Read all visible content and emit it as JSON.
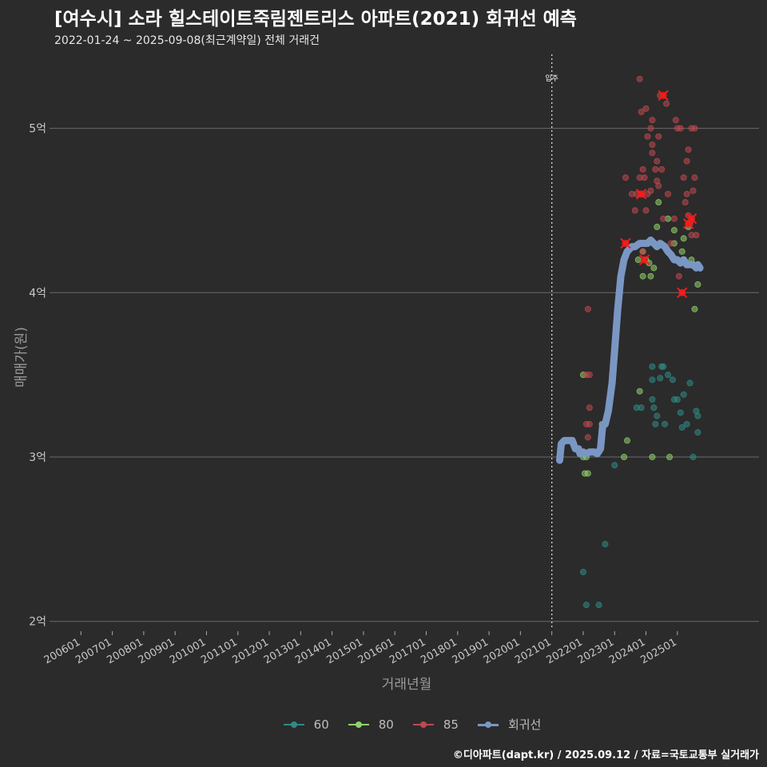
{
  "header": {
    "title": "[여수시] 소라 힐스테이트죽림젠트리스 아파트(2021) 회귀선 예측",
    "subtitle": "2022-01-24 ~ 2025-09-08(최근계약일) 전체 거래건"
  },
  "footer": {
    "credit": "©디아파트(dapt.kr) / 2025.09.12 / 자료=국토교통부 실거래가"
  },
  "colors": {
    "background": "#2b2b2b",
    "s60": "#2f8a85",
    "s80": "#8fd16a",
    "s85": "#c0484f",
    "regression": "#7a97c4",
    "highlight": "#ff1a1a"
  },
  "chart_data": {
    "type": "scatter",
    "title": "[여수시] 소라 힐스테이트죽림젠트리스 아파트(2021) 회귀선 예측",
    "subtitle": "2022-01-24 ~ 2025-09-08(최근계약일) 전체 거래건",
    "xlabel": "거래년월",
    "ylabel": "매매가(원)",
    "xlim": [
      2005.0,
      2027.6
    ],
    "ylim": [
      1.95,
      5.45
    ],
    "x_ticks": [
      {
        "label": "200601",
        "value": 2006.0
      },
      {
        "label": "200701",
        "value": 2007.0
      },
      {
        "label": "200801",
        "value": 2008.0
      },
      {
        "label": "200901",
        "value": 2009.0
      },
      {
        "label": "201001",
        "value": 2010.0
      },
      {
        "label": "201101",
        "value": 2011.0
      },
      {
        "label": "201201",
        "value": 2012.0
      },
      {
        "label": "201301",
        "value": 2013.0
      },
      {
        "label": "201401",
        "value": 2014.0
      },
      {
        "label": "201501",
        "value": 2015.0
      },
      {
        "label": "201601",
        "value": 2016.0
      },
      {
        "label": "201701",
        "value": 2017.0
      },
      {
        "label": "201801",
        "value": 2018.0
      },
      {
        "label": "201901",
        "value": 2019.0
      },
      {
        "label": "202001",
        "value": 2020.0
      },
      {
        "label": "202101",
        "value": 2021.0
      },
      {
        "label": "202201",
        "value": 2022.0
      },
      {
        "label": "202301",
        "value": 2023.0
      },
      {
        "label": "202401",
        "value": 2024.0
      },
      {
        "label": "202501",
        "value": 2025.0
      }
    ],
    "y_ticks": [
      {
        "label": "2억",
        "value": 2
      },
      {
        "label": "3억",
        "value": 3
      },
      {
        "label": "4억",
        "value": 4
      },
      {
        "label": "5억",
        "value": 5
      }
    ],
    "annotation": {
      "label": "입주",
      "x": 2021.0
    },
    "legend": [
      {
        "name": "60",
        "color": "#2f8a85"
      },
      {
        "name": "80",
        "color": "#8fd16a"
      },
      {
        "name": "85",
        "color": "#c0484f"
      },
      {
        "name": "회귀선",
        "color": "#7a97c4"
      }
    ],
    "series": [
      {
        "name": "60",
        "color": "#2f8a85",
        "points": [
          [
            2022.0,
            2.3
          ],
          [
            2022.1,
            2.1
          ],
          [
            2022.5,
            2.1
          ],
          [
            2022.7,
            2.47
          ],
          [
            2023.0,
            2.95
          ],
          [
            2023.7,
            3.3
          ],
          [
            2023.85,
            3.3
          ],
          [
            2024.2,
            3.55
          ],
          [
            2024.2,
            3.47
          ],
          [
            2024.2,
            3.35
          ],
          [
            2024.25,
            3.3
          ],
          [
            2024.3,
            3.2
          ],
          [
            2024.35,
            3.25
          ],
          [
            2024.45,
            3.48
          ],
          [
            2024.5,
            3.55
          ],
          [
            2024.55,
            3.55
          ],
          [
            2024.6,
            3.2
          ],
          [
            2024.7,
            3.5
          ],
          [
            2024.85,
            3.47
          ],
          [
            2024.9,
            3.35
          ],
          [
            2025.0,
            3.35
          ],
          [
            2025.1,
            3.27
          ],
          [
            2025.15,
            3.18
          ],
          [
            2025.2,
            3.38
          ],
          [
            2025.3,
            3.2
          ],
          [
            2025.4,
            3.45
          ],
          [
            2025.5,
            3.0
          ],
          [
            2025.6,
            3.28
          ],
          [
            2025.65,
            3.25
          ],
          [
            2025.65,
            3.15
          ]
        ]
      },
      {
        "name": "80",
        "color": "#8fd16a",
        "points": [
          [
            2022.0,
            3.5
          ],
          [
            2022.0,
            3.0
          ],
          [
            2022.05,
            2.9
          ],
          [
            2022.15,
            2.9
          ],
          [
            2022.1,
            3.0
          ],
          [
            2022.6,
            3.2
          ],
          [
            2023.3,
            3.0
          ],
          [
            2023.4,
            3.1
          ],
          [
            2023.75,
            4.2
          ],
          [
            2023.8,
            3.4
          ],
          [
            2023.85,
            4.6
          ],
          [
            2023.9,
            4.25
          ],
          [
            2023.9,
            4.1
          ],
          [
            2024.0,
            4.2
          ],
          [
            2024.1,
            4.18
          ],
          [
            2024.15,
            4.1
          ],
          [
            2024.2,
            3.0
          ],
          [
            2024.25,
            4.15
          ],
          [
            2024.35,
            4.4
          ],
          [
            2024.4,
            4.55
          ],
          [
            2024.7,
            4.45
          ],
          [
            2024.75,
            3.0
          ],
          [
            2024.9,
            4.38
          ],
          [
            2024.9,
            4.3
          ],
          [
            2025.15,
            4.25
          ],
          [
            2025.2,
            4.33
          ],
          [
            2025.35,
            4.4
          ],
          [
            2025.45,
            4.2
          ],
          [
            2025.55,
            3.9
          ],
          [
            2025.65,
            4.05
          ]
        ]
      },
      {
        "name": "85",
        "color": "#c0484f",
        "points": [
          [
            2022.1,
            3.5
          ],
          [
            2022.1,
            3.2
          ],
          [
            2022.15,
            3.9
          ],
          [
            2022.2,
            3.3
          ],
          [
            2022.15,
            3.12
          ],
          [
            2022.2,
            3.2
          ],
          [
            2022.2,
            3.5
          ],
          [
            2023.35,
            4.3
          ],
          [
            2023.35,
            4.7
          ],
          [
            2023.55,
            4.6
          ],
          [
            2023.65,
            4.5
          ],
          [
            2023.7,
            4.6
          ],
          [
            2023.8,
            4.7
          ],
          [
            2023.85,
            4.6
          ],
          [
            2023.9,
            4.75
          ],
          [
            2023.9,
            4.25
          ],
          [
            2023.95,
            4.7
          ],
          [
            2024.0,
            4.5
          ],
          [
            2024.05,
            4.6
          ],
          [
            2024.15,
            4.62
          ],
          [
            2024.15,
            5.0
          ],
          [
            2024.2,
            4.9
          ],
          [
            2024.2,
            5.05
          ],
          [
            2024.3,
            4.75
          ],
          [
            2024.35,
            4.8
          ],
          [
            2024.35,
            4.68
          ],
          [
            2024.4,
            4.65
          ],
          [
            2024.4,
            4.95
          ],
          [
            2024.45,
            5.2
          ],
          [
            2024.5,
            4.75
          ],
          [
            2024.55,
            4.45
          ],
          [
            2024.65,
            5.15
          ],
          [
            2024.7,
            4.6
          ],
          [
            2024.8,
            4.3
          ],
          [
            2024.9,
            4.45
          ],
          [
            2024.95,
            5.05
          ],
          [
            2025.0,
            5.0
          ],
          [
            2025.05,
            4.1
          ],
          [
            2025.1,
            5.0
          ],
          [
            2025.15,
            4.0
          ],
          [
            2025.2,
            4.7
          ],
          [
            2025.25,
            4.55
          ],
          [
            2025.3,
            4.6
          ],
          [
            2025.3,
            4.8
          ],
          [
            2025.35,
            4.87
          ],
          [
            2025.35,
            4.47
          ],
          [
            2025.4,
            4.43
          ],
          [
            2025.4,
            4.42
          ],
          [
            2025.45,
            4.35
          ],
          [
            2025.45,
            5.0
          ],
          [
            2025.5,
            4.62
          ],
          [
            2025.55,
            4.7
          ],
          [
            2025.55,
            5.0
          ],
          [
            2025.6,
            4.35
          ],
          [
            2023.85,
            5.1
          ],
          [
            2024.0,
            5.12
          ],
          [
            2024.05,
            4.95
          ],
          [
            2024.2,
            4.85
          ],
          [
            2023.8,
            5.3
          ],
          [
            2025.0,
            4.2
          ]
        ]
      },
      {
        "name": "회귀선",
        "color": "#7a97c4",
        "points": [
          [
            2021.25,
            2.98
          ],
          [
            2021.3,
            3.08
          ],
          [
            2021.4,
            3.1
          ],
          [
            2021.55,
            3.1
          ],
          [
            2021.65,
            3.1
          ],
          [
            2021.75,
            3.05
          ],
          [
            2021.85,
            3.05
          ],
          [
            2021.9,
            3.02
          ],
          [
            2022.0,
            3.03
          ],
          [
            2022.1,
            3.02
          ],
          [
            2022.2,
            3.03
          ],
          [
            2022.35,
            3.03
          ],
          [
            2022.45,
            3.02
          ],
          [
            2022.55,
            3.05
          ],
          [
            2022.62,
            3.19
          ],
          [
            2022.7,
            3.2
          ],
          [
            2022.8,
            3.28
          ],
          [
            2022.92,
            3.45
          ],
          [
            2023.0,
            3.65
          ],
          [
            2023.1,
            3.9
          ],
          [
            2023.2,
            4.1
          ],
          [
            2023.3,
            4.2
          ],
          [
            2023.4,
            4.25
          ],
          [
            2023.55,
            4.28
          ],
          [
            2023.65,
            4.28
          ],
          [
            2023.8,
            4.3
          ],
          [
            2023.95,
            4.3
          ],
          [
            2024.05,
            4.3
          ],
          [
            2024.15,
            4.32
          ],
          [
            2024.25,
            4.3
          ],
          [
            2024.35,
            4.28
          ],
          [
            2024.45,
            4.3
          ],
          [
            2024.6,
            4.28
          ],
          [
            2024.7,
            4.25
          ],
          [
            2024.8,
            4.23
          ],
          [
            2024.9,
            4.2
          ],
          [
            2025.0,
            4.2
          ],
          [
            2025.1,
            4.18
          ],
          [
            2025.2,
            4.2
          ],
          [
            2025.3,
            4.17
          ],
          [
            2025.4,
            4.17
          ],
          [
            2025.5,
            4.17
          ],
          [
            2025.6,
            4.15
          ],
          [
            2025.65,
            4.17
          ],
          [
            2025.72,
            4.15
          ]
        ]
      }
    ],
    "highlight_points": [
      [
        2023.35,
        4.3
      ],
      [
        2023.85,
        4.6
      ],
      [
        2023.95,
        4.2
      ],
      [
        2024.55,
        5.2
      ],
      [
        2025.15,
        4.0
      ],
      [
        2025.35,
        4.42
      ],
      [
        2025.45,
        4.45
      ]
    ]
  }
}
